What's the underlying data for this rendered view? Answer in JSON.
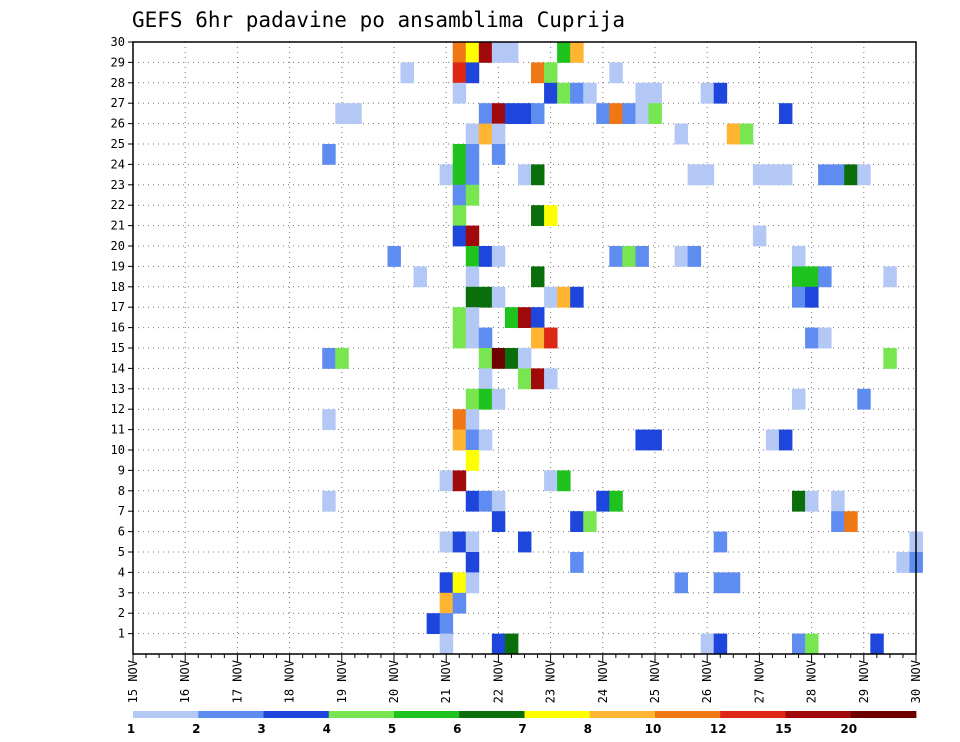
{
  "chart_data": {
    "type": "heatmap",
    "title": "GEFS 6hr padavine po ansamblima Cuprija",
    "x_tick_labels": [
      "15 NOV",
      "16 NOV",
      "17 NOV",
      "18 NOV",
      "19 NOV",
      "20 NOV",
      "21 NOV",
      "22 NOV",
      "23 NOV",
      "24 NOV",
      "25 NOV",
      "26 NOV",
      "27 NOV",
      "28 NOV",
      "29 NOV",
      "30 NOV"
    ],
    "y_tick_labels": [
      "1",
      "2",
      "3",
      "4",
      "5",
      "6",
      "7",
      "8",
      "9",
      "10",
      "11",
      "12",
      "13",
      "14",
      "15",
      "16",
      "17",
      "18",
      "19",
      "20",
      "21",
      "22",
      "23",
      "24",
      "25",
      "26",
      "27",
      "28",
      "29",
      "30"
    ],
    "x_step_hours": 6,
    "y_range": [
      0,
      30
    ],
    "grid": true,
    "legend": {
      "position": "bottom",
      "levels": [
        "1",
        "2",
        "3",
        "4",
        "5",
        "6",
        "7",
        "8",
        "10",
        "12",
        "15",
        "20"
      ],
      "colors": [
        "#b4c8f5",
        "#5f8cf0",
        "#1e46dc",
        "#78e650",
        "#1ec31e",
        "#0a6e0a",
        "#ffff00",
        "#ffb432",
        "#f07814",
        "#dc2814",
        "#a00a0a",
        "#6e0000"
      ]
    },
    "cells": [
      {
        "t": "21 NOV 06",
        "m": 30,
        "c": 9
      },
      {
        "t": "21 NOV 12",
        "m": 30,
        "c": 7
      },
      {
        "t": "21 NOV 18",
        "m": 30,
        "c": 11
      },
      {
        "t": "22 NOV 00",
        "m": 30,
        "c": 1
      },
      {
        "t": "22 NOV 06",
        "m": 30,
        "c": 1
      },
      {
        "t": "23 NOV 06",
        "m": 30,
        "c": 5
      },
      {
        "t": "23 NOV 12",
        "m": 30,
        "c": 8
      },
      {
        "t": "20 NOV 06",
        "m": 29,
        "c": 1
      },
      {
        "t": "21 NOV 06",
        "m": 29,
        "c": 10
      },
      {
        "t": "21 NOV 12",
        "m": 29,
        "c": 3
      },
      {
        "t": "22 NOV 18",
        "m": 29,
        "c": 9
      },
      {
        "t": "23 NOV 00",
        "m": 29,
        "c": 4
      },
      {
        "t": "24 NOV 06",
        "m": 29,
        "c": 1
      },
      {
        "t": "21 NOV 06",
        "m": 28,
        "c": 1
      },
      {
        "t": "23 NOV 00",
        "m": 28,
        "c": 3
      },
      {
        "t": "23 NOV 06",
        "m": 28,
        "c": 4
      },
      {
        "t": "23 NOV 12",
        "m": 28,
        "c": 2
      },
      {
        "t": "23 NOV 18",
        "m": 28,
        "c": 1
      },
      {
        "t": "24 NOV 18",
        "m": 28,
        "c": 1
      },
      {
        "t": "25 NOV 00",
        "m": 28,
        "c": 1
      },
      {
        "t": "26 NOV 00",
        "m": 28,
        "c": 1
      },
      {
        "t": "26 NOV 06",
        "m": 28,
        "c": 3
      },
      {
        "t": "19 NOV 00",
        "m": 27,
        "c": 1
      },
      {
        "t": "19 NOV 06",
        "m": 27,
        "c": 1
      },
      {
        "t": "21 NOV 18",
        "m": 27,
        "c": 2
      },
      {
        "t": "22 NOV 00",
        "m": 27,
        "c": 11
      },
      {
        "t": "22 NOV 06",
        "m": 27,
        "c": 3
      },
      {
        "t": "22 NOV 12",
        "m": 27,
        "c": 3
      },
      {
        "t": "22 NOV 18",
        "m": 27,
        "c": 2
      },
      {
        "t": "24 NOV 00",
        "m": 27,
        "c": 2
      },
      {
        "t": "24 NOV 06",
        "m": 27,
        "c": 9
      },
      {
        "t": "24 NOV 12",
        "m": 27,
        "c": 2
      },
      {
        "t": "24 NOV 18",
        "m": 27,
        "c": 1
      },
      {
        "t": "25 NOV 00",
        "m": 27,
        "c": 4
      },
      {
        "t": "27 NOV 12",
        "m": 27,
        "c": 3
      },
      {
        "t": "21 NOV 12",
        "m": 26,
        "c": 1
      },
      {
        "t": "21 NOV 18",
        "m": 26,
        "c": 8
      },
      {
        "t": "22 NOV 00",
        "m": 26,
        "c": 1
      },
      {
        "t": "25 NOV 12",
        "m": 26,
        "c": 1
      },
      {
        "t": "26 NOV 12",
        "m": 26,
        "c": 8
      },
      {
        "t": "26 NOV 18",
        "m": 26,
        "c": 4
      },
      {
        "t": "18 NOV 18",
        "m": 25,
        "c": 2
      },
      {
        "t": "21 NOV 06",
        "m": 25,
        "c": 5
      },
      {
        "t": "21 NOV 12",
        "m": 25,
        "c": 2
      },
      {
        "t": "22 NOV 00",
        "m": 25,
        "c": 2
      },
      {
        "t": "21 NOV 00",
        "m": 24,
        "c": 1
      },
      {
        "t": "21 NOV 06",
        "m": 24,
        "c": 5
      },
      {
        "t": "21 NOV 12",
        "m": 24,
        "c": 2
      },
      {
        "t": "22 NOV 12",
        "m": 24,
        "c": 1
      },
      {
        "t": "22 NOV 18",
        "m": 24,
        "c": 6
      },
      {
        "t": "25 NOV 18",
        "m": 24,
        "c": 1
      },
      {
        "t": "26 NOV 00",
        "m": 24,
        "c": 1
      },
      {
        "t": "27 NOV 00",
        "m": 24,
        "c": 1
      },
      {
        "t": "27 NOV 06",
        "m": 24,
        "c": 1
      },
      {
        "t": "27 NOV 12",
        "m": 24,
        "c": 1
      },
      {
        "t": "28 NOV 06",
        "m": 24,
        "c": 2
      },
      {
        "t": "28 NOV 12",
        "m": 24,
        "c": 2
      },
      {
        "t": "28 NOV 18",
        "m": 24,
        "c": 6
      },
      {
        "t": "29 NOV 00",
        "m": 24,
        "c": 1
      },
      {
        "t": "21 NOV 06",
        "m": 23,
        "c": 2
      },
      {
        "t": "21 NOV 12",
        "m": 23,
        "c": 4
      },
      {
        "t": "21 NOV 06",
        "m": 22,
        "c": 4
      },
      {
        "t": "22 NOV 18",
        "m": 22,
        "c": 6
      },
      {
        "t": "23 NOV 00",
        "m": 22,
        "c": 7
      },
      {
        "t": "21 NOV 06",
        "m": 21,
        "c": 3
      },
      {
        "t": "21 NOV 12",
        "m": 21,
        "c": 11
      },
      {
        "t": "27 NOV 00",
        "m": 21,
        "c": 1
      },
      {
        "t": "20 NOV 00",
        "m": 20,
        "c": 2
      },
      {
        "t": "21 NOV 12",
        "m": 20,
        "c": 5
      },
      {
        "t": "21 NOV 18",
        "m": 20,
        "c": 3
      },
      {
        "t": "22 NOV 00",
        "m": 20,
        "c": 1
      },
      {
        "t": "24 NOV 06",
        "m": 20,
        "c": 2
      },
      {
        "t": "24 NOV 12",
        "m": 20,
        "c": 4
      },
      {
        "t": "24 NOV 18",
        "m": 20,
        "c": 2
      },
      {
        "t": "25 NOV 12",
        "m": 20,
        "c": 1
      },
      {
        "t": "25 NOV 18",
        "m": 20,
        "c": 2
      },
      {
        "t": "27 NOV 18",
        "m": 20,
        "c": 1
      },
      {
        "t": "20 NOV 12",
        "m": 19,
        "c": 1
      },
      {
        "t": "21 NOV 12",
        "m": 19,
        "c": 1
      },
      {
        "t": "22 NOV 18",
        "m": 19,
        "c": 6
      },
      {
        "t": "27 NOV 18",
        "m": 19,
        "c": 5
      },
      {
        "t": "28 NOV 00",
        "m": 19,
        "c": 5
      },
      {
        "t": "28 NOV 06",
        "m": 19,
        "c": 2
      },
      {
        "t": "29 NOV 12",
        "m": 19,
        "c": 1
      },
      {
        "t": "21 NOV 12",
        "m": 18,
        "c": 6
      },
      {
        "t": "21 NOV 18",
        "m": 18,
        "c": 6
      },
      {
        "t": "22 NOV 00",
        "m": 18,
        "c": 1
      },
      {
        "t": "23 NOV 00",
        "m": 18,
        "c": 1
      },
      {
        "t": "23 NOV 06",
        "m": 18,
        "c": 8
      },
      {
        "t": "23 NOV 12",
        "m": 18,
        "c": 3
      },
      {
        "t": "27 NOV 18",
        "m": 18,
        "c": 2
      },
      {
        "t": "28 NOV 00",
        "m": 18,
        "c": 3
      },
      {
        "t": "21 NOV 06",
        "m": 17,
        "c": 4
      },
      {
        "t": "21 NOV 12",
        "m": 17,
        "c": 1
      },
      {
        "t": "22 NOV 06",
        "m": 17,
        "c": 5
      },
      {
        "t": "22 NOV 12",
        "m": 17,
        "c": 11
      },
      {
        "t": "22 NOV 18",
        "m": 17,
        "c": 3
      },
      {
        "t": "21 NOV 06",
        "m": 16,
        "c": 4
      },
      {
        "t": "21 NOV 12",
        "m": 16,
        "c": 1
      },
      {
        "t": "21 NOV 18",
        "m": 16,
        "c": 2
      },
      {
        "t": "22 NOV 18",
        "m": 16,
        "c": 8
      },
      {
        "t": "23 NOV 00",
        "m": 16,
        "c": 10
      },
      {
        "t": "28 NOV 00",
        "m": 16,
        "c": 2
      },
      {
        "t": "28 NOV 06",
        "m": 16,
        "c": 1
      },
      {
        "t": "18 NOV 18",
        "m": 15,
        "c": 2
      },
      {
        "t": "19 NOV 00",
        "m": 15,
        "c": 4
      },
      {
        "t": "21 NOV 18",
        "m": 15,
        "c": 4
      },
      {
        "t": "22 NOV 00",
        "m": 15,
        "c": 12
      },
      {
        "t": "22 NOV 06",
        "m": 15,
        "c": 6
      },
      {
        "t": "22 NOV 12",
        "m": 15,
        "c": 1
      },
      {
        "t": "29 NOV 12",
        "m": 15,
        "c": 4
      },
      {
        "t": "21 NOV 18",
        "m": 14,
        "c": 1
      },
      {
        "t": "22 NOV 12",
        "m": 14,
        "c": 4
      },
      {
        "t": "22 NOV 18",
        "m": 14,
        "c": 11
      },
      {
        "t": "23 NOV 00",
        "m": 14,
        "c": 1
      },
      {
        "t": "21 NOV 12",
        "m": 13,
        "c": 4
      },
      {
        "t": "21 NOV 18",
        "m": 13,
        "c": 5
      },
      {
        "t": "22 NOV 00",
        "m": 13,
        "c": 1
      },
      {
        "t": "27 NOV 18",
        "m": 13,
        "c": 1
      },
      {
        "t": "29 NOV 00",
        "m": 13,
        "c": 2
      },
      {
        "t": "18 NOV 18",
        "m": 12,
        "c": 1
      },
      {
        "t": "21 NOV 06",
        "m": 12,
        "c": 9
      },
      {
        "t": "21 NOV 12",
        "m": 12,
        "c": 1
      },
      {
        "t": "21 NOV 06",
        "m": 11,
        "c": 8
      },
      {
        "t": "21 NOV 12",
        "m": 11,
        "c": 2
      },
      {
        "t": "21 NOV 18",
        "m": 11,
        "c": 1
      },
      {
        "t": "24 NOV 18",
        "m": 11,
        "c": 3
      },
      {
        "t": "25 NOV 00",
        "m": 11,
        "c": 3
      },
      {
        "t": "27 NOV 06",
        "m": 11,
        "c": 1
      },
      {
        "t": "27 NOV 12",
        "m": 11,
        "c": 3
      },
      {
        "t": "21 NOV 12",
        "m": 10,
        "c": 7
      },
      {
        "t": "21 NOV 00",
        "m": 9,
        "c": 1
      },
      {
        "t": "21 NOV 06",
        "m": 9,
        "c": 11
      },
      {
        "t": "23 NOV 00",
        "m": 9,
        "c": 1
      },
      {
        "t": "23 NOV 06",
        "m": 9,
        "c": 5
      },
      {
        "t": "18 NOV 18",
        "m": 8,
        "c": 1
      },
      {
        "t": "21 NOV 12",
        "m": 8,
        "c": 3
      },
      {
        "t": "21 NOV 18",
        "m": 8,
        "c": 2
      },
      {
        "t": "22 NOV 00",
        "m": 8,
        "c": 1
      },
      {
        "t": "24 NOV 00",
        "m": 8,
        "c": 3
      },
      {
        "t": "24 NOV 06",
        "m": 8,
        "c": 5
      },
      {
        "t": "27 NOV 18",
        "m": 8,
        "c": 6
      },
      {
        "t": "28 NOV 00",
        "m": 8,
        "c": 1
      },
      {
        "t": "28 NOV 12",
        "m": 8,
        "c": 1
      },
      {
        "t": "22 NOV 00",
        "m": 7,
        "c": 3
      },
      {
        "t": "23 NOV 12",
        "m": 7,
        "c": 3
      },
      {
        "t": "23 NOV 18",
        "m": 7,
        "c": 4
      },
      {
        "t": "28 NOV 12",
        "m": 7,
        "c": 2
      },
      {
        "t": "28 NOV 18",
        "m": 7,
        "c": 9
      },
      {
        "t": "21 NOV 00",
        "m": 6,
        "c": 1
      },
      {
        "t": "21 NOV 06",
        "m": 6,
        "c": 3
      },
      {
        "t": "21 NOV 12",
        "m": 6,
        "c": 1
      },
      {
        "t": "22 NOV 12",
        "m": 6,
        "c": 3
      },
      {
        "t": "26 NOV 06",
        "m": 6,
        "c": 2
      },
      {
        "t": "30 NOV 00",
        "m": 6,
        "c": 1
      },
      {
        "t": "21 NOV 12",
        "m": 5,
        "c": 3
      },
      {
        "t": "23 NOV 12",
        "m": 5,
        "c": 2
      },
      {
        "t": "29 NOV 18",
        "m": 5,
        "c": 1
      },
      {
        "t": "30 NOV 00",
        "m": 5,
        "c": 2
      },
      {
        "t": "21 NOV 00",
        "m": 4,
        "c": 3
      },
      {
        "t": "21 NOV 06",
        "m": 4,
        "c": 7
      },
      {
        "t": "21 NOV 12",
        "m": 4,
        "c": 1
      },
      {
        "t": "25 NOV 12",
        "m": 4,
        "c": 2
      },
      {
        "t": "26 NOV 06",
        "m": 4,
        "c": 2
      },
      {
        "t": "26 NOV 12",
        "m": 4,
        "c": 2
      },
      {
        "t": "21 NOV 00",
        "m": 3,
        "c": 8
      },
      {
        "t": "21 NOV 06",
        "m": 3,
        "c": 2
      },
      {
        "t": "20 NOV 18",
        "m": 2,
        "c": 3
      },
      {
        "t": "21 NOV 00",
        "m": 2,
        "c": 2
      },
      {
        "t": "21 NOV 00",
        "m": 1,
        "c": 1
      },
      {
        "t": "22 NOV 00",
        "m": 1,
        "c": 3
      },
      {
        "t": "22 NOV 06",
        "m": 1,
        "c": 6
      },
      {
        "t": "26 NOV 00",
        "m": 1,
        "c": 1
      },
      {
        "t": "26 NOV 06",
        "m": 1,
        "c": 3
      },
      {
        "t": "27 NOV 18",
        "m": 1,
        "c": 2
      },
      {
        "t": "28 NOV 00",
        "m": 1,
        "c": 4
      },
      {
        "t": "29 NOV 06",
        "m": 1,
        "c": 3
      }
    ]
  }
}
